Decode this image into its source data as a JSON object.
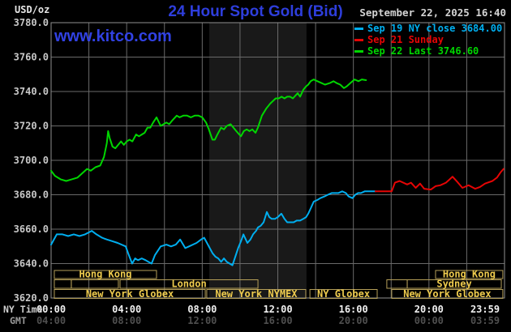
{
  "colors": {
    "background": "#000000",
    "title_blue": "#2e3edc",
    "watermark_blue": "#3142e4",
    "date_text": "#d4d4d4",
    "axis_label": "#c8c8c8",
    "ny_tick": "#f0f0f0",
    "gmt_tick": "#4f4f4f",
    "grid": "#6a6a6a",
    "frame": "#8f8f8f",
    "band": "#191919",
    "session_border": "#b49e58",
    "session_text": "#eecb4e",
    "cyan": "#00aeef",
    "red": "#e60505",
    "green": "#00d600"
  },
  "header": {
    "unit_label": "USD/oz",
    "title": "24 Hour Spot Gold (Bid)",
    "datetime": "September 22, 2025 16:40",
    "watermark": "www.kitco.com"
  },
  "legend": [
    {
      "label": "Sep 19 NY close 3684.00",
      "color": "#00aeef"
    },
    {
      "label": "Sep 21 Sunday",
      "color": "#e60505"
    },
    {
      "label": "Sep 22 Last 3746.60",
      "color": "#00d600"
    }
  ],
  "axes": {
    "ny_caption": "NY Time",
    "gmt_caption": "GMT",
    "tick_hours": [
      0,
      4,
      8,
      12,
      16,
      20,
      23.983
    ],
    "ny_ticks": [
      "00:00",
      "04:00",
      "08:00",
      "12:00",
      "16:00",
      "20:00",
      "23:59"
    ],
    "gmt_ticks": [
      "04:00",
      "08:00",
      "12:00",
      "16:00",
      "20:00",
      "00:00",
      "03:59"
    ],
    "y_tick_values": [
      3780,
      3760,
      3740,
      3720,
      3700,
      3680,
      3660,
      3640,
      3620
    ],
    "y_tick_labels": [
      "3780.0",
      "3760.0",
      "3740.0",
      "3720.0",
      "3700.0",
      "3680.0",
      "3660.0",
      "3640.0",
      "3620.0"
    ]
  },
  "chart_data": {
    "type": "line",
    "title": "24 Hour Spot Gold (Bid)",
    "xlabel": "NY Time (hours)",
    "ylabel": "USD/oz",
    "xlim": [
      0,
      24
    ],
    "ylim": [
      3620,
      3780
    ],
    "grid": true,
    "legend_position": "top-right",
    "nymex_band_hours": [
      8.37,
      13.52
    ],
    "series": [
      {
        "id": "sep19",
        "name": "Sep 19 NY close 3684.00",
        "color": "#00aeef",
        "close_value": 3684.0,
        "points": [
          [
            0,
            3651
          ],
          [
            0.3,
            3657
          ],
          [
            0.6,
            3657
          ],
          [
            0.9,
            3656
          ],
          [
            1.2,
            3657
          ],
          [
            1.5,
            3656
          ],
          [
            1.8,
            3657
          ],
          [
            2.15,
            3659
          ],
          [
            2.4,
            3657
          ],
          [
            2.7,
            3655
          ],
          [
            2.96,
            3654
          ],
          [
            3.25,
            3653
          ],
          [
            3.52,
            3652
          ],
          [
            3.95,
            3650
          ],
          [
            4.08,
            3646
          ],
          [
            4.29,
            3640
          ],
          [
            4.45,
            3643
          ],
          [
            4.6,
            3642
          ],
          [
            4.8,
            3643
          ],
          [
            5.0,
            3642
          ],
          [
            5.15,
            3641
          ],
          [
            5.32,
            3640
          ],
          [
            5.5,
            3645
          ],
          [
            5.8,
            3650
          ],
          [
            6.1,
            3651
          ],
          [
            6.35,
            3650
          ],
          [
            6.6,
            3651
          ],
          [
            6.83,
            3654
          ],
          [
            7.1,
            3649
          ],
          [
            7.3,
            3650
          ],
          [
            7.5,
            3651
          ],
          [
            7.7,
            3652
          ],
          [
            7.94,
            3654
          ],
          [
            8.1,
            3655
          ],
          [
            8.25,
            3652
          ],
          [
            8.4,
            3649
          ],
          [
            8.55,
            3646
          ],
          [
            8.7,
            3644
          ],
          [
            8.85,
            3643
          ],
          [
            9.0,
            3641
          ],
          [
            9.15,
            3643
          ],
          [
            9.3,
            3641
          ],
          [
            9.45,
            3640
          ],
          [
            9.6,
            3639
          ],
          [
            9.75,
            3644
          ],
          [
            9.9,
            3649
          ],
          [
            10.05,
            3653
          ],
          [
            10.18,
            3657
          ],
          [
            10.39,
            3652
          ],
          [
            10.55,
            3654
          ],
          [
            10.69,
            3657
          ],
          [
            10.85,
            3659
          ],
          [
            10.95,
            3661
          ],
          [
            11.1,
            3662
          ],
          [
            11.25,
            3664
          ],
          [
            11.42,
            3670
          ],
          [
            11.55,
            3667
          ],
          [
            11.68,
            3666
          ],
          [
            11.85,
            3666
          ],
          [
            12.0,
            3667
          ],
          [
            12.19,
            3669
          ],
          [
            12.35,
            3666
          ],
          [
            12.5,
            3664
          ],
          [
            12.65,
            3664
          ],
          [
            12.84,
            3664
          ],
          [
            13.0,
            3665
          ],
          [
            13.18,
            3665
          ],
          [
            13.35,
            3666
          ],
          [
            13.5,
            3667
          ],
          [
            13.61,
            3669
          ],
          [
            13.74,
            3672
          ],
          [
            13.9,
            3676
          ],
          [
            14.1,
            3677
          ],
          [
            14.25,
            3678
          ],
          [
            14.47,
            3679
          ],
          [
            14.65,
            3680
          ],
          [
            14.85,
            3681
          ],
          [
            15.05,
            3681
          ],
          [
            15.2,
            3681
          ],
          [
            15.41,
            3682
          ],
          [
            15.6,
            3681
          ],
          [
            15.75,
            3679
          ],
          [
            15.95,
            3678
          ],
          [
            16.1,
            3680
          ],
          [
            16.25,
            3681
          ],
          [
            16.4,
            3681
          ],
          [
            16.6,
            3682
          ],
          [
            16.8,
            3682
          ],
          [
            17.0,
            3682
          ],
          [
            17.17,
            3682
          ]
        ]
      },
      {
        "id": "sep21",
        "name": "Sep 21 Sunday",
        "color": "#e60505",
        "points": [
          [
            17.17,
            3682
          ],
          [
            17.6,
            3682
          ],
          [
            18.03,
            3682
          ],
          [
            18.2,
            3687
          ],
          [
            18.45,
            3688
          ],
          [
            18.85,
            3686
          ],
          [
            19.05,
            3687
          ],
          [
            19.3,
            3684
          ],
          [
            19.53,
            3686.5
          ],
          [
            19.75,
            3683.5
          ],
          [
            20.1,
            3683
          ],
          [
            20.35,
            3685
          ],
          [
            20.6,
            3685.5
          ],
          [
            20.9,
            3687
          ],
          [
            21.1,
            3689
          ],
          [
            21.25,
            3690.5
          ],
          [
            21.5,
            3687.5
          ],
          [
            21.77,
            3684
          ],
          [
            22.1,
            3685.5
          ],
          [
            22.45,
            3683.5
          ],
          [
            22.7,
            3684.5
          ],
          [
            22.97,
            3686.5
          ],
          [
            23.36,
            3688
          ],
          [
            23.6,
            3690
          ],
          [
            23.79,
            3693
          ],
          [
            23.95,
            3695
          ]
        ]
      },
      {
        "id": "sep22",
        "name": "Sep 22 Last 3746.60",
        "color": "#00d600",
        "last_value": 3746.6,
        "points": [
          [
            0,
            3694
          ],
          [
            0.2,
            3691
          ],
          [
            0.5,
            3689
          ],
          [
            0.8,
            3688
          ],
          [
            1.1,
            3689
          ],
          [
            1.4,
            3690
          ],
          [
            1.7,
            3693
          ],
          [
            1.9,
            3695
          ],
          [
            2.1,
            3694
          ],
          [
            2.35,
            3696
          ],
          [
            2.6,
            3697
          ],
          [
            2.8,
            3702
          ],
          [
            2.95,
            3710
          ],
          [
            3.02,
            3717
          ],
          [
            3.1,
            3713
          ],
          [
            3.25,
            3708
          ],
          [
            3.4,
            3707
          ],
          [
            3.55,
            3709
          ],
          [
            3.7,
            3711
          ],
          [
            3.85,
            3709
          ],
          [
            4.0,
            3711
          ],
          [
            4.15,
            3712
          ],
          [
            4.3,
            3711
          ],
          [
            4.5,
            3715
          ],
          [
            4.65,
            3714
          ],
          [
            4.8,
            3715
          ],
          [
            4.95,
            3716
          ],
          [
            5.1,
            3719
          ],
          [
            5.25,
            3719
          ],
          [
            5.4,
            3722
          ],
          [
            5.58,
            3725
          ],
          [
            5.8,
            3720
          ],
          [
            5.95,
            3721
          ],
          [
            6.1,
            3722
          ],
          [
            6.25,
            3721
          ],
          [
            6.4,
            3723
          ],
          [
            6.65,
            3726
          ],
          [
            6.8,
            3725
          ],
          [
            7.0,
            3726
          ],
          [
            7.2,
            3726
          ],
          [
            7.4,
            3725
          ],
          [
            7.6,
            3726
          ],
          [
            7.8,
            3726
          ],
          [
            8.0,
            3725
          ],
          [
            8.2,
            3722
          ],
          [
            8.35,
            3718
          ],
          [
            8.54,
            3712
          ],
          [
            8.67,
            3712
          ],
          [
            8.8,
            3715
          ],
          [
            9.0,
            3719
          ],
          [
            9.15,
            3718
          ],
          [
            9.3,
            3720
          ],
          [
            9.5,
            3721
          ],
          [
            9.65,
            3719
          ],
          [
            9.8,
            3717
          ],
          [
            9.96,
            3715
          ],
          [
            10.05,
            3714
          ],
          [
            10.2,
            3717
          ],
          [
            10.35,
            3718
          ],
          [
            10.5,
            3717
          ],
          [
            10.65,
            3718
          ],
          [
            10.82,
            3716
          ],
          [
            10.95,
            3719
          ],
          [
            11.16,
            3726
          ],
          [
            11.38,
            3730
          ],
          [
            11.6,
            3733
          ],
          [
            11.89,
            3736
          ],
          [
            12.05,
            3736
          ],
          [
            12.2,
            3737
          ],
          [
            12.35,
            3736
          ],
          [
            12.5,
            3737
          ],
          [
            12.65,
            3737
          ],
          [
            12.8,
            3736
          ],
          [
            13.05,
            3739
          ],
          [
            13.18,
            3737
          ],
          [
            13.35,
            3741
          ],
          [
            13.5,
            3743
          ],
          [
            13.61,
            3744
          ],
          [
            13.74,
            3746
          ],
          [
            13.9,
            3747
          ],
          [
            14.1,
            3746
          ],
          [
            14.3,
            3745
          ],
          [
            14.5,
            3744
          ],
          [
            14.77,
            3745
          ],
          [
            14.95,
            3746
          ],
          [
            15.1,
            3745
          ],
          [
            15.3,
            3744
          ],
          [
            15.5,
            3742
          ],
          [
            15.65,
            3743
          ],
          [
            15.85,
            3745
          ],
          [
            16.06,
            3747
          ],
          [
            16.27,
            3746
          ],
          [
            16.45,
            3747
          ],
          [
            16.67,
            3746.6
          ]
        ]
      }
    ],
    "sessions": [
      {
        "row": 0,
        "label": "Hong Kong",
        "start_h": 0.17,
        "end_h": 5.58
      },
      {
        "row": 0,
        "label": "Hong Kong",
        "start_h": 20.35,
        "end_h": 23.91
      },
      {
        "row": 1,
        "label": "",
        "start_h": 0.17,
        "end_h": 1.07
      },
      {
        "row": 1,
        "label": "",
        "start_h": 1.07,
        "end_h": 3.56
      },
      {
        "row": 1,
        "label": "London",
        "start_h": 3.65,
        "end_h": 10.95
      },
      {
        "row": 1,
        "label": "",
        "start_h": 17.77,
        "end_h": 18.85
      },
      {
        "row": 1,
        "label": "Sydney",
        "start_h": 18.85,
        "end_h": 23.83
      },
      {
        "row": 2,
        "label": "New York Globex",
        "start_h": 0.17,
        "end_h": 8.16
      },
      {
        "row": 2,
        "label": "New York NYMEX",
        "start_h": 8.24,
        "end_h": 13.48
      },
      {
        "row": 2,
        "label": "NY Globex",
        "start_h": 13.7,
        "end_h": 17.26
      },
      {
        "row": 2,
        "label": "New York Globex",
        "start_h": 18.03,
        "end_h": 23.91
      }
    ]
  }
}
